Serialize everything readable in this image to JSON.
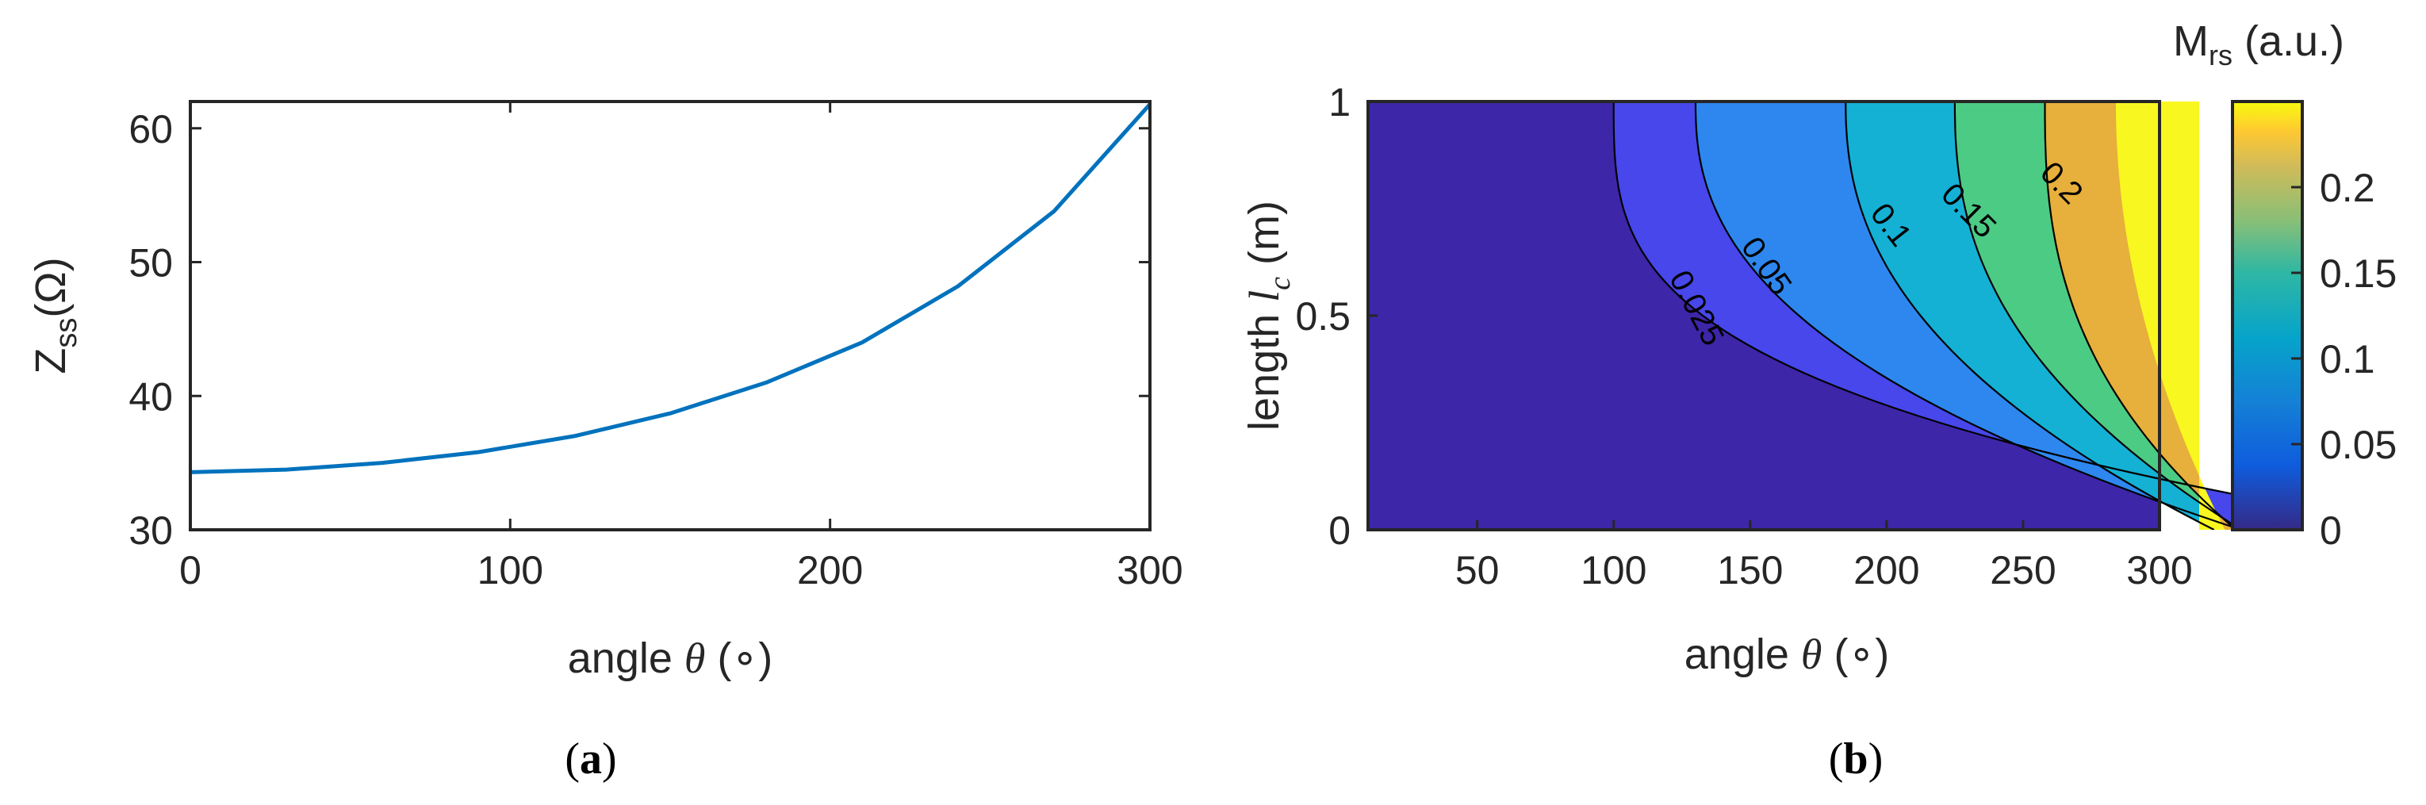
{
  "chart_data": [
    {
      "panel": "(a)",
      "type": "line",
      "xlabel": "angle θ (∘)",
      "ylabel": "Z_ss(Ω)",
      "xlim": [
        0,
        300
      ],
      "ylim": [
        30,
        62
      ],
      "xticks": [
        0,
        100,
        200,
        300
      ],
      "yticks": [
        30,
        40,
        50,
        60
      ],
      "grid": false,
      "series": [
        {
          "color": "#0072BD",
          "x": [
            0,
            30,
            60,
            90,
            120,
            150,
            180,
            210,
            240,
            270,
            300
          ],
          "y": [
            34.3,
            34.5,
            35.0,
            35.8,
            37.0,
            38.7,
            41.0,
            44.0,
            48.2,
            53.8,
            61.8
          ]
        }
      ]
    },
    {
      "panel": "(b)",
      "type": "contour",
      "xlabel": "angle θ (∘)",
      "ylabel": "length l_c (m)",
      "xlim": [
        10,
        300
      ],
      "ylim": [
        0,
        1
      ],
      "xticks": [
        50,
        100,
        150,
        200,
        250,
        300
      ],
      "yticks": [
        0,
        0.5,
        1
      ],
      "colorbar": {
        "title": "M_rs (a.u.)",
        "range": [
          0,
          0.25
        ],
        "ticks": [
          "0",
          "0.05",
          "0.1",
          "0.15",
          "0.2"
        ],
        "colormap": "parula"
      },
      "contour_levels": [
        0.025,
        0.05,
        0.1,
        0.15,
        0.2
      ],
      "contour_labels": [
        "0.025",
        "0.05",
        "0.1",
        "0.15",
        "0.2"
      ]
    }
  ],
  "panel_labels": {
    "a": "(a)",
    "b": "(b)"
  },
  "labels": {
    "a_xlabel_main": "angle ",
    "a_xlabel_sym": "θ",
    "a_xlabel_unit": " (∘)",
    "a_ylabel_main": "Z",
    "a_ylabel_sub": "ss",
    "a_ylabel_unit": "(Ω)",
    "b_xlabel_main": "angle ",
    "b_xlabel_sym": "θ",
    "b_xlabel_unit": " (∘)",
    "b_ylabel_main": "length ",
    "b_ylabel_sym": "l",
    "b_ylabel_sub": "c",
    "b_ylabel_unit": " (m)",
    "cb_title_main": "M",
    "cb_title_sub": "rs",
    "cb_title_unit": " (a.u.)"
  },
  "colors": {
    "line": "#0072BD",
    "level0": "#3D26A8",
    "level1": "#4747EB",
    "level2": "#2E87EF",
    "level3": "#14B1D5",
    "level4": "#4CCB85",
    "level5": "#E7AF3B",
    "level6": "#F9F720"
  }
}
